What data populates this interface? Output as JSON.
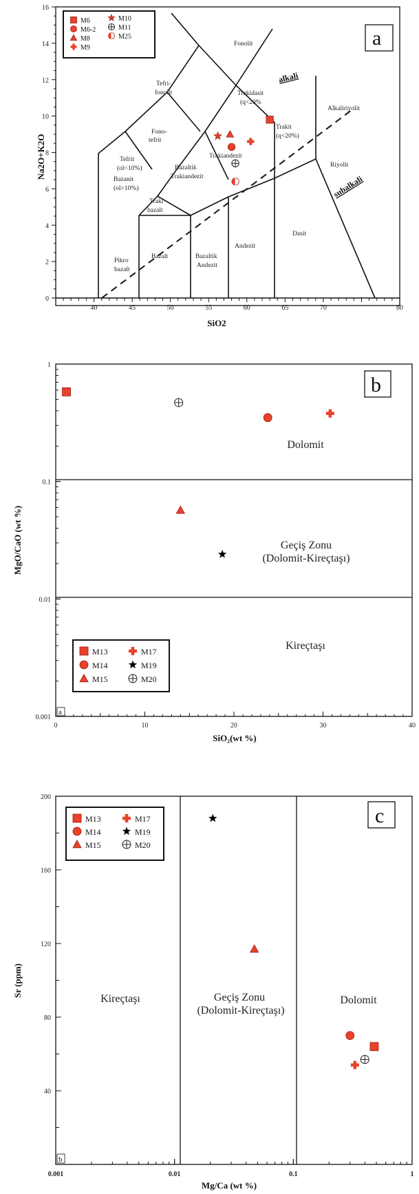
{
  "colors": {
    "marker": "#e8412c",
    "marker_stroke": "#9a1c10",
    "line": "#111111"
  },
  "chart_data": [
    {
      "type": "scatter",
      "panel_letter": "a",
      "xlabel": "SiO2",
      "ylabel": "Na2O+K2O",
      "xlim": [
        35,
        80
      ],
      "ylim": [
        0,
        16
      ],
      "x_ticks": [
        40,
        45,
        50,
        55,
        60,
        65,
        70,
        80
      ],
      "y_ticks": [
        0,
        2,
        4,
        6,
        8,
        10,
        12,
        14,
        16
      ],
      "fields": [
        "Fonolit",
        "Tefri-",
        "fonolit",
        "Fono-",
        "tefrit",
        "Tefrit",
        "(ol<10%)",
        "Bazanit",
        "(ol>10%)",
        "Bazaltik",
        "Trakiandezit",
        "Traki",
        "bazalt",
        "Trakiandezit",
        "Trakidasit",
        "(q<20%",
        "Trakit",
        "(q<20%)",
        "Alkaliriyolit",
        "Riyolit",
        "Dasit",
        "Andezit",
        "Bazaltik",
        "Andezit",
        "Bazalt",
        "Pikro",
        "bazalt"
      ],
      "series_labels": {
        "alkali": "alkali",
        "subalkali": "subalkali"
      },
      "series": [
        {
          "name": "M6",
          "marker": "square",
          "x": 63.0,
          "y": 9.8
        },
        {
          "name": "M6-2",
          "marker": "circle",
          "x": 58.0,
          "y": 8.3
        },
        {
          "name": "M8",
          "marker": "triangle",
          "x": 57.8,
          "y": 9.0
        },
        {
          "name": "M9",
          "marker": "cross",
          "x": 60.5,
          "y": 8.6
        },
        {
          "name": "M10",
          "marker": "star",
          "x": 56.2,
          "y": 8.9
        },
        {
          "name": "M11",
          "marker": "crosscircle",
          "x": 58.5,
          "y": 7.4
        },
        {
          "name": "M25",
          "marker": "halfcircle",
          "x": 58.5,
          "y": 6.4
        }
      ]
    },
    {
      "type": "scatter",
      "panel_letter": "b",
      "corner_label": "a",
      "xlabel": "SiO₂(wt %)",
      "ylabel": "MgO/CaO (wt %)",
      "xlim": [
        0,
        40
      ],
      "ylim": [
        0.001,
        1
      ],
      "y_scale": "log",
      "x_ticks": [
        "0",
        "10",
        "20",
        "30",
        "40"
      ],
      "y_ticks": [
        "1",
        "0.1",
        "0.01",
        "0.001"
      ],
      "regions": {
        "dolomit": "Dolomit",
        "gecis_1": "Geçiş Zonu",
        "gecis_2": "(Dolomit-Kireçtaşı)",
        "kirectasi": "Kireçtaşı"
      },
      "series": [
        {
          "name": "M13",
          "marker": "square",
          "x": 1.2,
          "y": 0.58
        },
        {
          "name": "M14",
          "marker": "circle",
          "x": 23.8,
          "y": 0.35
        },
        {
          "name": "M15",
          "marker": "triangle",
          "x": 14.0,
          "y": 0.057
        },
        {
          "name": "M17",
          "marker": "cross",
          "x": 30.8,
          "y": 0.38
        },
        {
          "name": "M19",
          "marker": "blackstar",
          "x": 18.7,
          "y": 0.024
        },
        {
          "name": "M20",
          "marker": "crosscircle",
          "x": 13.8,
          "y": 0.47
        }
      ]
    },
    {
      "type": "scatter",
      "panel_letter": "c",
      "corner_label": "b",
      "xlabel": "Mg/Ca (wt %)",
      "ylabel": "Sr (ppm)",
      "xlim": [
        0.001,
        1
      ],
      "x_scale": "log",
      "ylim": [
        0,
        200
      ],
      "x_ticks": [
        "0.001",
        "0.01",
        "0.1",
        "1"
      ],
      "y_ticks": [
        "40",
        "80",
        "120",
        "160",
        "200"
      ],
      "regions": {
        "kirectasi": "Kireçtaşı",
        "gecis_1": "Geçiş Zonu",
        "gecis_2": "(Dolomit-Kireçtaşı)",
        "dolomit": "Dolomit"
      },
      "series": [
        {
          "name": "M13",
          "marker": "square",
          "x": 0.48,
          "y": 64
        },
        {
          "name": "M14",
          "marker": "circle",
          "x": 0.3,
          "y": 70
        },
        {
          "name": "M15",
          "marker": "triangle",
          "x": 0.047,
          "y": 117
        },
        {
          "name": "M17",
          "marker": "cross",
          "x": 0.33,
          "y": 54
        },
        {
          "name": "M19",
          "marker": "blackstar",
          "x": 0.021,
          "y": 188
        },
        {
          "name": "M20",
          "marker": "crosscircle",
          "x": 0.4,
          "y": 57
        }
      ]
    }
  ]
}
